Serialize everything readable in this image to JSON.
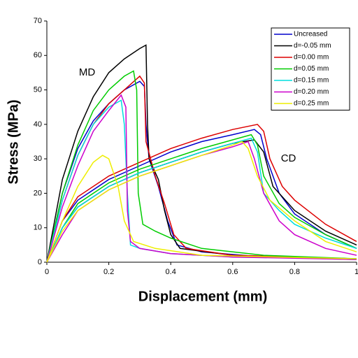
{
  "chart_data": {
    "type": "line",
    "xlabel": "Displacement (mm)",
    "ylabel": "Stress (MPa)",
    "xlim": [
      0,
      1
    ],
    "ylim": [
      0,
      70
    ],
    "xticks": [
      0,
      0.2,
      0.4,
      0.6,
      0.8,
      1
    ],
    "yticks": [
      0,
      10,
      20,
      30,
      40,
      50,
      60,
      70
    ],
    "annotations": [
      {
        "text": "MD",
        "x": 0.13,
        "y": 55
      },
      {
        "text": "CD",
        "x": 0.78,
        "y": 30
      }
    ],
    "series": [
      {
        "name": "Uncreased",
        "color": "#0000cc",
        "x": [
          0,
          0.05,
          0.1,
          0.15,
          0.2,
          0.25,
          0.3,
          0.315,
          0.32,
          0.33,
          0.36,
          0.39,
          0.42,
          0.5,
          0.7,
          1,
          null,
          0,
          0.05,
          0.1,
          0.2,
          0.3,
          0.4,
          0.5,
          0.6,
          0.67,
          0.69,
          0.71,
          0.75,
          0.8,
          0.9,
          1
        ],
        "values": [
          0,
          20,
          33,
          41,
          46,
          50,
          52.5,
          51,
          40,
          30,
          22,
          12,
          5,
          3,
          1.5,
          0.8,
          null,
          0,
          12,
          18,
          24,
          28,
          32,
          35,
          37,
          38.5,
          37,
          30,
          20,
          14,
          8,
          4
        ]
      },
      {
        "name": "d=-0.05 mm",
        "color": "#000000",
        "x": [
          0,
          0.05,
          0.1,
          0.15,
          0.2,
          0.25,
          0.3,
          0.32,
          0.325,
          0.33,
          0.36,
          0.38,
          0.4,
          0.43,
          0.6,
          1,
          null,
          0,
          0.05,
          0.1,
          0.2,
          0.3,
          0.4,
          0.5,
          0.6,
          0.67,
          0.7,
          0.73,
          0.8,
          0.9,
          1
        ],
        "values": [
          0,
          24,
          38,
          48,
          55,
          59,
          62,
          63,
          40,
          30,
          24,
          15,
          8,
          4,
          2,
          1,
          null,
          0,
          10,
          16,
          22,
          26,
          29,
          32,
          34.5,
          35.5,
          32,
          22,
          15,
          9,
          5
        ]
      },
      {
        "name": "d=0.00 mm",
        "color": "#dd0000",
        "x": [
          0,
          0.05,
          0.1,
          0.15,
          0.2,
          0.25,
          0.3,
          0.315,
          0.32,
          0.35,
          0.38,
          0.41,
          0.45,
          0.6,
          1,
          null,
          0,
          0.05,
          0.1,
          0.2,
          0.3,
          0.4,
          0.5,
          0.6,
          0.68,
          0.7,
          0.72,
          0.76,
          0.8,
          0.9,
          1
        ],
        "values": [
          0,
          18,
          31,
          40,
          46,
          50,
          54,
          52,
          35,
          25,
          17,
          8,
          4,
          2,
          1,
          null,
          0,
          12,
          19,
          25,
          29,
          33,
          36,
          38.5,
          40,
          38,
          30,
          22,
          18,
          11,
          6
        ]
      },
      {
        "name": "d=0.05 mm",
        "color": "#00cc00",
        "x": [
          0,
          0.05,
          0.1,
          0.15,
          0.2,
          0.25,
          0.28,
          0.29,
          0.295,
          0.31,
          0.35,
          0.4,
          0.5,
          0.7,
          1,
          null,
          0,
          0.05,
          0.1,
          0.2,
          0.3,
          0.4,
          0.5,
          0.6,
          0.66,
          0.68,
          0.7,
          0.75,
          0.8,
          0.9,
          1
        ],
        "values": [
          0,
          20,
          34,
          44,
          50,
          54,
          55.5,
          50,
          20,
          11,
          9,
          7,
          4,
          2,
          1,
          null,
          0,
          10,
          17,
          23,
          27,
          30,
          33,
          35.5,
          37,
          34,
          25,
          17,
          13,
          8,
          4
        ]
      },
      {
        "name": "d=0.15 mm",
        "color": "#00dddd",
        "x": [
          0,
          0.05,
          0.1,
          0.15,
          0.2,
          0.24,
          0.25,
          0.26,
          0.27,
          0.3,
          0.4,
          0.6,
          1,
          null,
          0,
          0.05,
          0.1,
          0.2,
          0.3,
          0.4,
          0.5,
          0.6,
          0.66,
          0.68,
          0.7,
          0.75,
          0.8,
          0.9,
          1
        ],
        "values": [
          0,
          18,
          31,
          40,
          45,
          47,
          40,
          20,
          5,
          4,
          2.5,
          1.5,
          1,
          null,
          0,
          10,
          16,
          22,
          26,
          29,
          32,
          34.5,
          36,
          32,
          20,
          15,
          11,
          7,
          4
        ]
      },
      {
        "name": "d=0.20 mm",
        "color": "#cc00cc",
        "x": [
          0,
          0.05,
          0.1,
          0.15,
          0.2,
          0.24,
          0.255,
          0.26,
          0.27,
          0.3,
          0.4,
          0.6,
          1,
          null,
          0,
          0.05,
          0.1,
          0.2,
          0.3,
          0.4,
          0.5,
          0.6,
          0.65,
          0.67,
          0.7,
          0.75,
          0.8,
          0.9,
          1
        ],
        "values": [
          0,
          16,
          28,
          38,
          44,
          48.5,
          45,
          15,
          6,
          4,
          2.5,
          1.5,
          0.8,
          null,
          0,
          8,
          15,
          21,
          25,
          28,
          31,
          33.5,
          35,
          30,
          20,
          12,
          8,
          4,
          2
        ]
      },
      {
        "name": "d=0.25 mm",
        "color": "#eeee00",
        "x": [
          0,
          0.05,
          0.1,
          0.15,
          0.18,
          0.2,
          0.23,
          0.25,
          0.28,
          0.35,
          0.5,
          1,
          null,
          0,
          0.05,
          0.1,
          0.2,
          0.3,
          0.4,
          0.5,
          0.6,
          0.63,
          0.65,
          0.68,
          0.72,
          0.8,
          0.9,
          1
        ],
        "values": [
          0,
          12,
          22,
          29,
          31,
          30,
          22,
          12,
          6,
          4,
          2,
          1,
          null,
          0,
          9,
          15,
          21,
          25,
          28,
          31,
          34,
          35,
          33,
          25,
          18,
          12,
          6,
          3
        ]
      }
    ]
  }
}
